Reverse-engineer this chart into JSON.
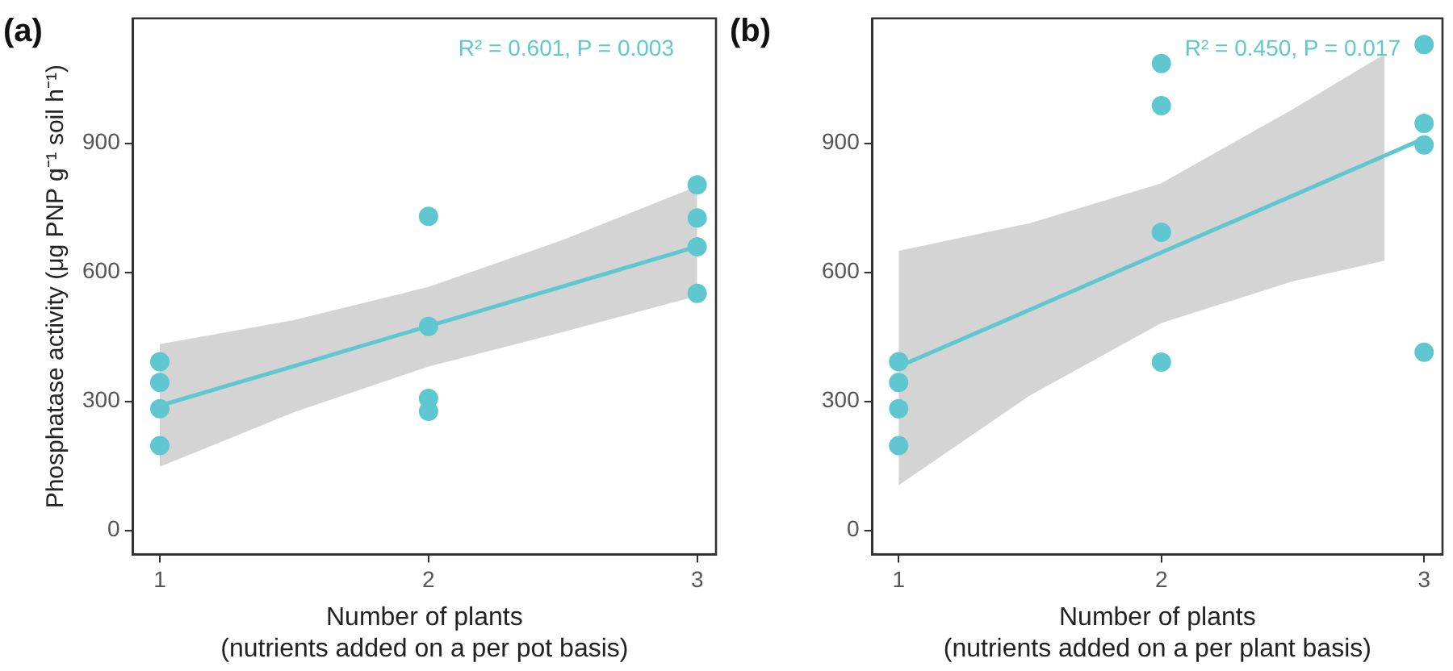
{
  "chart_data": [
    {
      "type": "scatter",
      "title": "(a)",
      "xlabel": "Number of plants\n(nutrients added on a per pot basis)",
      "ylabel": "Phosphatase activity (μg PNP g⁻¹ soil h⁻¹)",
      "annotations": [
        "R² = 0.601, P = 0.003"
      ],
      "xlim": [
        0.9,
        3.07
      ],
      "ylim": [
        -56,
        1190
      ],
      "xticks": [
        1,
        2,
        3
      ],
      "yticks": [
        0,
        300,
        600,
        900
      ],
      "grid": false,
      "legend": false,
      "series": [
        {
          "type": "scatter",
          "marker": "circle",
          "color": "#5ec7cf",
          "x": [
            1,
            1,
            1,
            1,
            2,
            2,
            2,
            2,
            3,
            3,
            3,
            3
          ],
          "values": [
            392,
            344,
            283,
            197,
            730,
            474,
            307,
            277,
            803,
            726,
            659,
            551
          ]
        },
        {
          "type": "line",
          "marker": "none",
          "color": "#5ec7cf",
          "x": [
            1,
            1.5,
            2,
            2.5,
            3
          ],
          "values": [
            290,
            382,
            475,
            567,
            660
          ],
          "lower": [
            148,
            275,
            381,
            461,
            545
          ],
          "upper": [
            433,
            489,
            566,
            675,
            800
          ]
        }
      ]
    },
    {
      "type": "scatter",
      "title": "(b)",
      "xlabel": "Number of plants\n(nutrients added on a per plant basis)",
      "annotations": [
        "R² = 0.450, P = 0.017"
      ],
      "xlim": [
        0.9,
        3.07
      ],
      "ylim": [
        -56,
        1190
      ],
      "xticks": [
        1,
        2,
        3
      ],
      "yticks": [
        0,
        300,
        600,
        900
      ],
      "grid": false,
      "legend": false,
      "series": [
        {
          "type": "scatter",
          "marker": "circle",
          "color": "#5ec7cf",
          "x": [
            1,
            1,
            1,
            1,
            2,
            2,
            2,
            2,
            3,
            3,
            3,
            3
          ],
          "values": [
            392,
            344,
            283,
            197,
            1085,
            987,
            693,
            391,
            1129,
            946,
            896,
            414
          ]
        },
        {
          "type": "line",
          "marker": "none",
          "color": "#5ec7cf",
          "x": [
            1,
            1.5,
            2,
            2.5,
            2.85,
            3
          ],
          "values": [
            381,
            513,
            646,
            778,
            871,
            911
          ],
          "lower": [
            105,
            314,
            482,
            579,
            627,
            null
          ],
          "upper": [
            650,
            714,
            807,
            979,
            1107,
            null
          ]
        }
      ]
    }
  ]
}
